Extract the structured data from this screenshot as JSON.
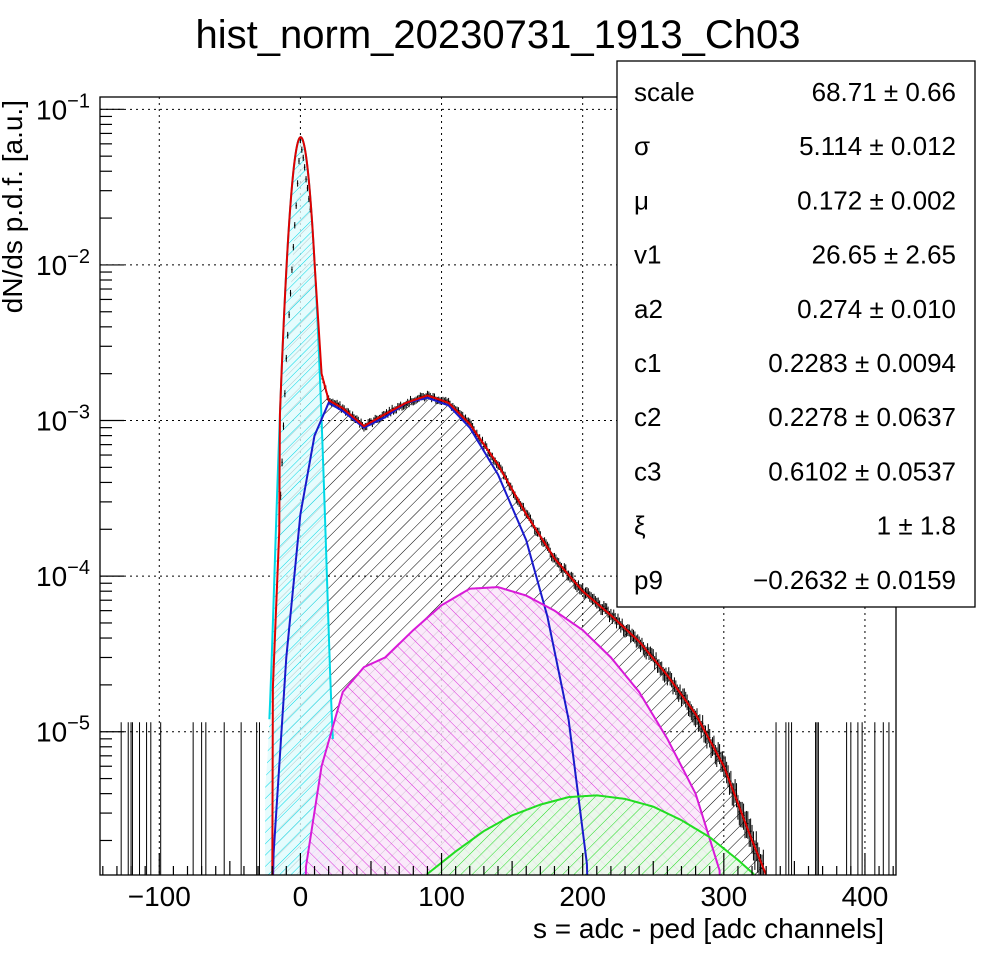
{
  "chart_data": {
    "type": "histogram",
    "title": "hist_norm_20230731_1913_Ch03",
    "xlabel": "s = adc - ped [adc channels]",
    "ylabel": "dN/ds p.d.f. [a.u.]",
    "xlim": [
      -142,
      422
    ],
    "ylim": [
      1.2e-06,
      0.12
    ],
    "yscale": "log",
    "grid": true,
    "x_ticks": [
      -100,
      0,
      100,
      200,
      300,
      400
    ],
    "x_tick_labels": [
      "−100",
      "0",
      "100",
      "200",
      "300",
      "400"
    ],
    "y_ticks": [
      1e-05,
      0.0001,
      0.001,
      0.01,
      0.1
    ],
    "y_tick_labels": [
      {
        "base": "10",
        "exp": "−5"
      },
      {
        "base": "10",
        "exp": "−4"
      },
      {
        "base": "10",
        "exp": "−3"
      },
      {
        "base": "10",
        "exp": "−2"
      },
      {
        "base": "10",
        "exp": "−1"
      }
    ],
    "components": {
      "pedestal": {
        "color": "#00d8e6",
        "mu": 0.172,
        "sigma": 5.114,
        "amplitude": 0.066
      },
      "single_pe": {
        "color": "#1a1acc",
        "points": [
          [
            -20,
            1.2e-06
          ],
          [
            -10,
            3e-05
          ],
          [
            0,
            0.00025
          ],
          [
            10,
            0.0008
          ],
          [
            20,
            0.0013
          ],
          [
            30,
            0.00115
          ],
          [
            45,
            0.0009
          ],
          [
            60,
            0.00105
          ],
          [
            75,
            0.0013
          ],
          [
            90,
            0.0014
          ],
          [
            105,
            0.00125
          ],
          [
            120,
            0.0009
          ],
          [
            140,
            0.00045
          ],
          [
            160,
            0.00017
          ],
          [
            175,
            5.5e-05
          ],
          [
            190,
            1.2e-05
          ],
          [
            204,
            1.2e-06
          ]
        ]
      },
      "double_pe": {
        "color": "#d81ad8",
        "points": [
          [
            3,
            1.2e-06
          ],
          [
            15,
            6e-06
          ],
          [
            30,
            1.8e-05
          ],
          [
            45,
            2.6e-05
          ],
          [
            60,
            3e-05
          ],
          [
            80,
            4.5e-05
          ],
          [
            100,
            6.5e-05
          ],
          [
            120,
            8.3e-05
          ],
          [
            140,
            8.5e-05
          ],
          [
            160,
            7.5e-05
          ],
          [
            180,
            6e-05
          ],
          [
            200,
            4.5e-05
          ],
          [
            220,
            3e-05
          ],
          [
            240,
            1.8e-05
          ],
          [
            260,
            9e-06
          ],
          [
            280,
            4e-06
          ],
          [
            298,
            1.2e-06
          ]
        ]
      },
      "triple_pe": {
        "color": "#22dd22",
        "points": [
          [
            89,
            1.2e-06
          ],
          [
            110,
            1.7e-06
          ],
          [
            130,
            2.3e-06
          ],
          [
            150,
            2.9e-06
          ],
          [
            170,
            3.4e-06
          ],
          [
            190,
            3.8e-06
          ],
          [
            210,
            3.9e-06
          ],
          [
            230,
            3.7e-06
          ],
          [
            250,
            3.3e-06
          ],
          [
            270,
            2.7e-06
          ],
          [
            290,
            2.1e-06
          ],
          [
            310,
            1.5e-06
          ],
          [
            322,
            1.2e-06
          ]
        ]
      },
      "total_fit": {
        "color": "#e00000",
        "points": [
          [
            -20,
            1.5e-05
          ],
          [
            -10,
            0.0025
          ],
          [
            0,
            0.065
          ],
          [
            8,
            0.02
          ],
          [
            15,
            0.002
          ],
          [
            20,
            0.00135
          ],
          [
            30,
            0.0012
          ],
          [
            45,
            0.00092
          ],
          [
            60,
            0.0011
          ],
          [
            75,
            0.0013
          ],
          [
            90,
            0.00145
          ],
          [
            105,
            0.0013
          ],
          [
            120,
            0.00095
          ],
          [
            140,
            0.00052
          ],
          [
            160,
            0.00025
          ],
          [
            180,
            0.00013
          ],
          [
            200,
            8e-05
          ],
          [
            220,
            5.6e-05
          ],
          [
            240,
            3.8e-05
          ],
          [
            260,
            2.3e-05
          ],
          [
            280,
            1.3e-05
          ],
          [
            300,
            6e-06
          ],
          [
            320,
            2e-06
          ],
          [
            330,
            1.2e-06
          ]
        ]
      }
    }
  },
  "stats_box": {
    "rows": [
      {
        "name": "scale",
        "value": "68.71 ± 0.66"
      },
      {
        "name": "σ",
        "value": "5.114 ± 0.012"
      },
      {
        "name": "μ",
        "value": "0.172 ± 0.002"
      },
      {
        "name": "v1",
        "value": "26.65 ± 2.65"
      },
      {
        "name": "a2",
        "value": "0.274 ± 0.010"
      },
      {
        "name": "c1",
        "value": "0.2283 ± 0.0094"
      },
      {
        "name": "c2",
        "value": "0.2278 ± 0.0637"
      },
      {
        "name": "c3",
        "value": "0.6102 ± 0.0537"
      },
      {
        "name": "ξ",
        "value": "1 ± 1.8"
      },
      {
        "name": "p9",
        "value": "−0.2632 ± 0.0159"
      }
    ]
  },
  "colors": {
    "data": "#000000",
    "frame": "#000000",
    "grid": "#000000",
    "fit": "#e00000"
  }
}
